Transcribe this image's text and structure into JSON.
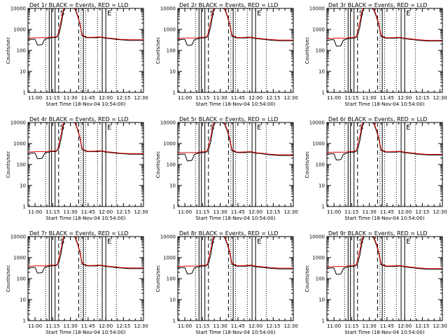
{
  "chart_data": {
    "type": "line",
    "layout": {
      "rows": 3,
      "cols": 3
    },
    "shared": {
      "xlabel": "Start Time (18-Nov-04 10:54:00)",
      "ylabel": "Counts/sec",
      "yscale": "log",
      "ylim": [
        1,
        10000
      ],
      "xlim": [
        "10:54",
        "12:32"
      ],
      "x_ticks": [
        "11:00",
        "11:15",
        "11:30",
        "11:45",
        "12:00",
        "12:15",
        "12:30"
      ],
      "y_ticks": [
        "1",
        "10",
        "100",
        "1000",
        "10000"
      ],
      "legend_text": "BLACK = Events, RED = LLD",
      "series_colors": {
        "events": "#000000",
        "lld": "#e00000"
      },
      "marker_lines": [
        {
          "time": "11:09",
          "style": "dotted",
          "label": ""
        },
        {
          "time": "11:12",
          "style": "solid",
          "label": ""
        },
        {
          "time": "11:14",
          "style": "solid",
          "label": ""
        },
        {
          "time": "11:17",
          "style": "solid",
          "label": ""
        },
        {
          "time": "11:20",
          "style": "dashed",
          "label": "S"
        },
        {
          "time": "11:37",
          "style": "dashed",
          "label": ""
        },
        {
          "time": "11:39",
          "style": "dotted",
          "label": ""
        },
        {
          "time": "11:41",
          "style": "solid",
          "label": ""
        },
        {
          "time": "11:43",
          "style": "dotted",
          "label": ""
        },
        {
          "time": "11:53",
          "style": "dotted",
          "label": ""
        },
        {
          "time": "11:57",
          "style": "solid",
          "label": ""
        },
        {
          "time": "12:00",
          "style": "solid",
          "label": "E"
        },
        {
          "time": "12:09",
          "style": "dotted",
          "label": ""
        }
      ],
      "times": [
        "10:54",
        "10:58",
        "11:00",
        "11:02",
        "11:04",
        "11:06",
        "11:08",
        "11:10",
        "11:12",
        "11:14",
        "11:16",
        "11:18",
        "11:19",
        "11:20",
        "11:22",
        "11:24",
        "11:26",
        "11:28",
        "11:30",
        "11:32",
        "11:34",
        "11:36",
        "11:38",
        "11:40",
        "11:44",
        "11:48",
        "11:52",
        "11:56",
        "12:00",
        "12:04",
        "12:08",
        "12:12",
        "12:16",
        "12:20",
        "12:24",
        "12:28",
        "12:32"
      ]
    },
    "panels": [
      {
        "title": "Det 1r",
        "series": [
          {
            "name": "Events",
            "values": [
              330,
              340,
              340,
              180,
              180,
              190,
              330,
              360,
              380,
              410,
              400,
              420,
              460,
              520,
              1500,
              7000,
              13000,
              13000,
              13000,
              12000,
              9000,
              4500,
              1800,
              500,
              400,
              400,
              400,
              420,
              380,
              360,
              340,
              320,
              310,
              300,
              300,
              300,
              300
            ]
          },
          {
            "name": "LLD",
            "values": [
              380,
              390,
              400,
              400,
              400,
              400,
              400,
              400,
              420,
              430,
              430,
              450,
              480,
              800,
              2500,
              9000,
              15000,
              15000,
              15000,
              13000,
              10000,
              5000,
              2000,
              550,
              420,
              420,
              430,
              440,
              400,
              380,
              360,
              340,
              330,
              320,
              320,
              320,
              320
            ]
          }
        ]
      },
      {
        "title": "Det 2r",
        "series": [
          {
            "name": "Events",
            "values": [
              320,
              330,
              330,
              175,
              175,
              185,
              320,
              350,
              370,
              400,
              390,
              410,
              450,
              510,
              1400,
              6500,
              12000,
              12000,
              12000,
              11000,
              8500,
              4300,
              1700,
              480,
              390,
              390,
              390,
              410,
              370,
              350,
              330,
              310,
              300,
              290,
              290,
              290,
              290
            ]
          },
          {
            "name": "LLD",
            "values": [
              370,
              380,
              390,
              390,
              390,
              390,
              390,
              390,
              410,
              420,
              420,
              440,
              470,
              780,
              2400,
              8500,
              14000,
              14000,
              14000,
              12500,
              9500,
              4800,
              1900,
              530,
              410,
              410,
              420,
              430,
              390,
              370,
              350,
              330,
              320,
              310,
              310,
              310,
              310
            ]
          }
        ]
      },
      {
        "title": "Det 3r",
        "series": [
          {
            "name": "Events",
            "values": [
              300,
              320,
              320,
              160,
              160,
              170,
              310,
              340,
              360,
              380,
              380,
              400,
              440,
              500,
              1300,
              6000,
              11500,
              11500,
              11500,
              10500,
              8000,
              4000,
              1600,
              460,
              380,
              380,
              380,
              400,
              360,
              340,
              320,
              300,
              290,
              280,
              280,
              280,
              280
            ]
          },
          {
            "name": "LLD",
            "values": [
              360,
              370,
              380,
              380,
              380,
              380,
              380,
              380,
              400,
              410,
              410,
              430,
              460,
              760,
              2300,
              8200,
              13500,
              13500,
              13500,
              12000,
              9200,
              4600,
              1850,
              520,
              400,
              400,
              410,
              420,
              380,
              360,
              340,
              320,
              310,
              300,
              300,
              300,
              300
            ]
          }
        ]
      },
      {
        "title": "Det 4r",
        "series": [
          {
            "name": "Events",
            "values": [
              340,
              350,
              350,
              190,
              190,
              200,
              340,
              370,
              390,
              420,
              410,
              430,
              470,
              540,
              1550,
              7200,
              13200,
              13200,
              13200,
              12200,
              9200,
              4600,
              1850,
              520,
              410,
              410,
              410,
              430,
              390,
              370,
              350,
              330,
              320,
              310,
              310,
              310,
              310
            ]
          },
          {
            "name": "LLD",
            "values": [
              390,
              400,
              410,
              410,
              410,
              410,
              410,
              410,
              430,
              440,
              440,
              460,
              490,
              820,
              2550,
              9200,
              15200,
              15200,
              15200,
              13200,
              10200,
              5100,
              2050,
              560,
              430,
              430,
              440,
              450,
              410,
              390,
              370,
              350,
              340,
              330,
              330,
              330,
              330
            ]
          }
        ]
      },
      {
        "title": "Det 5r",
        "series": [
          {
            "name": "Events",
            "values": [
              300,
              310,
              310,
              150,
              150,
              160,
              300,
              330,
              350,
              370,
              370,
              390,
              430,
              490,
              1250,
              5800,
              11000,
              11000,
              11000,
              10000,
              7800,
              3900,
              1550,
              450,
              370,
              370,
              370,
              390,
              350,
              330,
              310,
              290,
              280,
              270,
              270,
              270,
              270
            ]
          },
          {
            "name": "LLD",
            "values": [
              350,
              360,
              370,
              370,
              370,
              370,
              370,
              370,
              390,
              400,
              400,
              420,
              450,
              740,
              2200,
              8000,
              13000,
              13000,
              13000,
              11500,
              9000,
              4500,
              1800,
              510,
              390,
              390,
              400,
              410,
              370,
              350,
              330,
              310,
              300,
              290,
              290,
              290,
              290
            ]
          }
        ]
      },
      {
        "title": "Det 6r",
        "series": [
          {
            "name": "Events",
            "values": [
              310,
              320,
              320,
              165,
              165,
              175,
              310,
              340,
              360,
              390,
              380,
              400,
              440,
              500,
              1350,
              6200,
              11800,
              11800,
              11800,
              10800,
              8200,
              4100,
              1650,
              470,
              385,
              385,
              385,
              405,
              365,
              345,
              325,
              305,
              295,
              285,
              285,
              285,
              285
            ]
          },
          {
            "name": "LLD",
            "values": [
              365,
              375,
              385,
              385,
              385,
              385,
              385,
              385,
              405,
              415,
              415,
              435,
              465,
              770,
              2350,
              8300,
              13800,
              13800,
              13800,
              12200,
              9300,
              4700,
              1880,
              525,
              405,
              405,
              415,
              425,
              385,
              365,
              345,
              325,
              315,
              305,
              305,
              305,
              305
            ]
          }
        ]
      },
      {
        "title": "Det 7r",
        "series": [
          {
            "name": "Events",
            "values": [
              330,
              340,
              340,
              185,
              185,
              195,
              335,
              365,
              385,
              415,
              405,
              425,
              465,
              530,
              1500,
              7000,
              13000,
              13000,
              13000,
              12000,
              9000,
              4500,
              1800,
              500,
              400,
              400,
              400,
              420,
              380,
              360,
              340,
              320,
              310,
              300,
              300,
              300,
              300
            ]
          },
          {
            "name": "LLD",
            "values": [
              385,
              395,
              405,
              405,
              405,
              405,
              405,
              405,
              425,
              435,
              435,
              455,
              485,
              810,
              2500,
              9000,
              15000,
              15000,
              15000,
              13000,
              10000,
              5000,
              2000,
              550,
              420,
              420,
              430,
              440,
              400,
              380,
              360,
              340,
              330,
              320,
              320,
              320,
              320
            ]
          }
        ]
      },
      {
        "title": "Det 8r",
        "series": [
          {
            "name": "Events",
            "values": [
              320,
              330,
              330,
              170,
              170,
              180,
              320,
              350,
              370,
              400,
              390,
              410,
              450,
              510,
              1400,
              6500,
              12000,
              12000,
              12000,
              11000,
              8500,
              4300,
              1700,
              480,
              390,
              390,
              390,
              410,
              370,
              350,
              330,
              310,
              300,
              290,
              290,
              290,
              290
            ]
          },
          {
            "name": "LLD",
            "values": [
              375,
              385,
              395,
              395,
              395,
              395,
              395,
              395,
              415,
              425,
              425,
              445,
              475,
              790,
              2450,
              8700,
              14500,
              14500,
              14500,
              12800,
              9800,
              4900,
              1950,
              540,
              415,
              415,
              425,
              435,
              395,
              375,
              355,
              335,
              325,
              315,
              315,
              315,
              315
            ]
          }
        ]
      },
      {
        "title": "Det 9r",
        "series": [
          {
            "name": "Events",
            "values": [
              310,
              320,
              320,
              160,
              160,
              170,
              310,
              340,
              360,
              385,
              380,
              400,
              440,
              500,
              1300,
              6000,
              11500,
              11500,
              11500,
              10500,
              8000,
              4000,
              1600,
              460,
              380,
              380,
              380,
              400,
              360,
              340,
              320,
              300,
              290,
              280,
              280,
              280,
              280
            ]
          },
          {
            "name": "LLD",
            "values": [
              360,
              370,
              380,
              380,
              380,
              380,
              380,
              380,
              400,
              410,
              410,
              430,
              460,
              760,
              2300,
              8200,
              13500,
              13500,
              13500,
              12000,
              9200,
              4600,
              1850,
              520,
              400,
              400,
              410,
              420,
              380,
              360,
              340,
              320,
              310,
              300,
              300,
              300,
              300
            ]
          }
        ]
      }
    ]
  }
}
